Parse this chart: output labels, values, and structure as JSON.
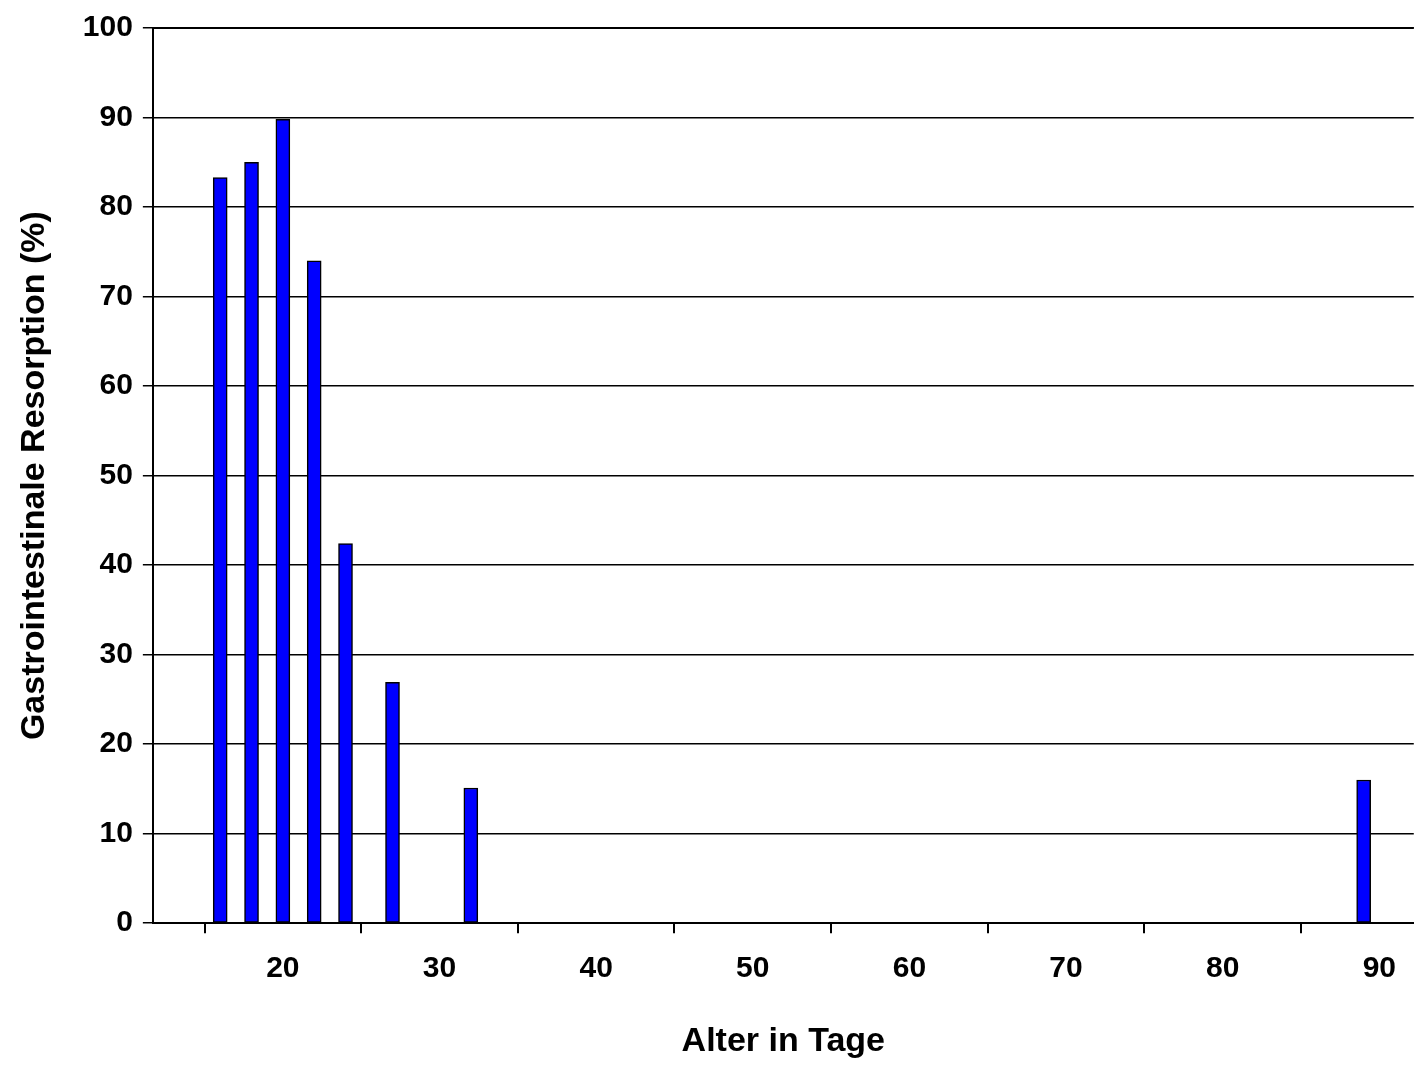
{
  "chart_data": {
    "type": "bar",
    "xlabel": "Alter in Tage",
    "ylabel": "Gastrointestinale Resorption (%)",
    "x": [
      16,
      18,
      20,
      22,
      24,
      27,
      32,
      89
    ],
    "values": [
      83.3,
      85,
      89.8,
      74,
      42.4,
      26.9,
      15.1,
      16
    ],
    "color": "#0000ff",
    "xlim": [
      11.7,
      92.2
    ],
    "xticks": [
      20,
      30,
      40,
      50,
      60,
      70,
      80,
      90
    ],
    "ylim": [
      0,
      100
    ],
    "yticks": [
      0,
      10,
      20,
      30,
      40,
      50,
      60,
      70,
      80,
      90,
      100
    ],
    "grid": "y",
    "legend": false
  }
}
